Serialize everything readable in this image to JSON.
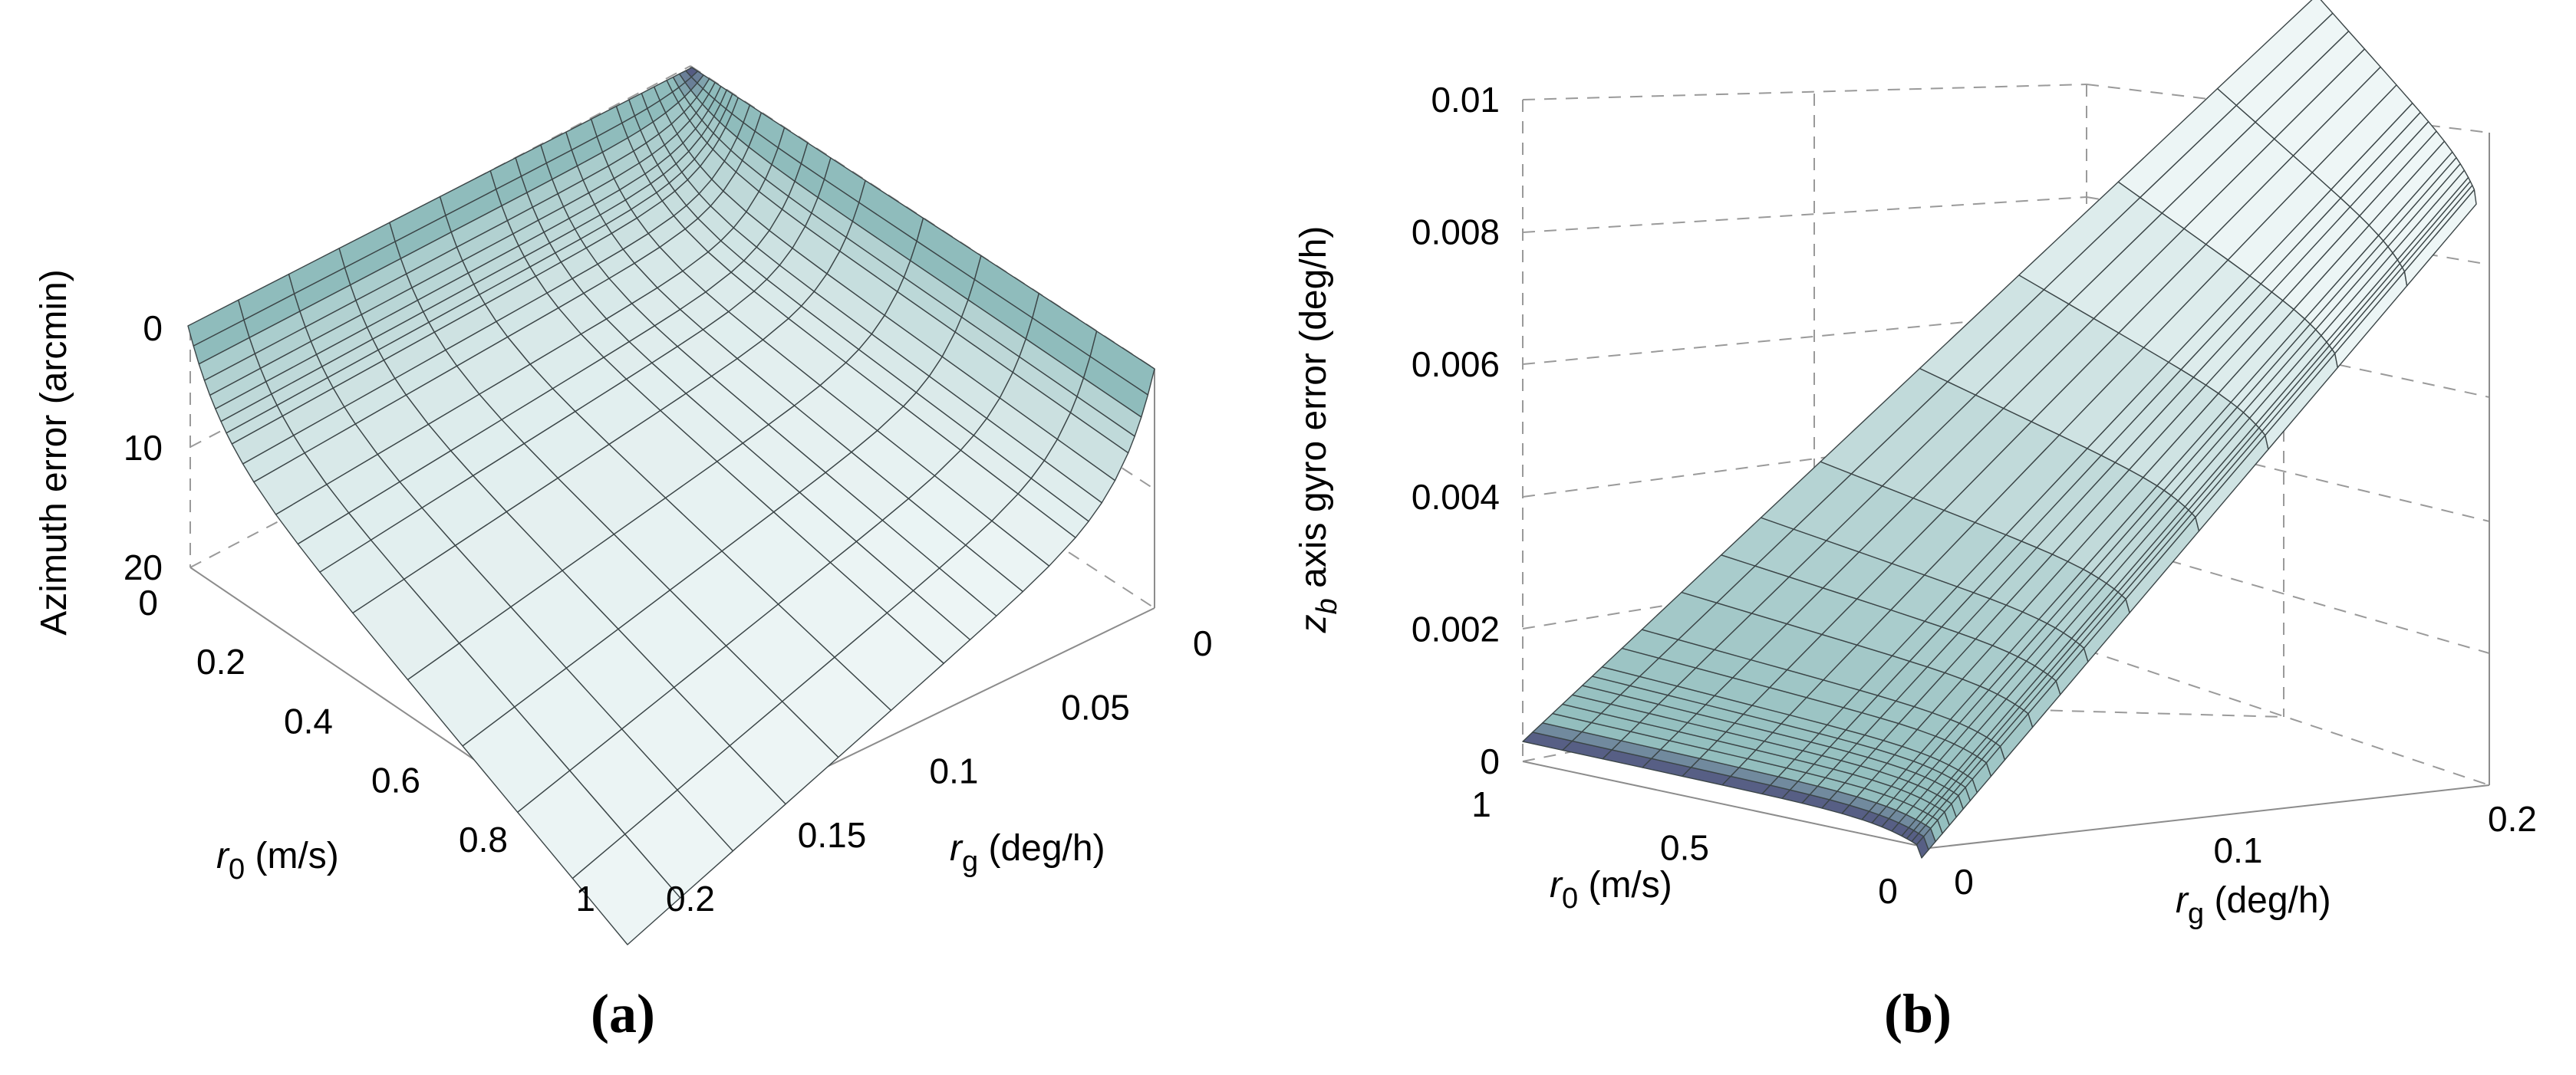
{
  "figure": {
    "colors": {
      "surface_high": "#eef6f6",
      "surface_low": "#8fbcbc",
      "surface_dark": "#4a4a78",
      "edge": "#3b4547",
      "grid": "#9a9a9a"
    }
  },
  "chart_data": [
    {
      "id": "a",
      "type": "surface",
      "panel_label": "(a)",
      "title": "",
      "xlabel": {
        "symbol": "r",
        "subscript": "g",
        "unit": " (deg/h)"
      },
      "ylabel": {
        "symbol": "r",
        "subscript": "0",
        "unit": " (m/s)"
      },
      "zlabel": "Azimuth error (arcmin)",
      "x_ticks": [
        "0",
        "0.05",
        "0.1",
        "0.15",
        "0.2"
      ],
      "y_ticks": [
        "0",
        "0.2",
        "0.4",
        "0.6",
        "0.8",
        "1"
      ],
      "z_ticks": [
        "0",
        "10",
        "20"
      ],
      "xlim": [
        0,
        0.2
      ],
      "ylim": [
        0,
        1
      ],
      "zlim": [
        0,
        20
      ],
      "z_direction": "reversed",
      "model": "azimuth error grows with rg and r0, saturating near 20 arcmin",
      "rg": [
        0,
        0.0025,
        0.005,
        0.0075,
        0.01,
        0.0125,
        0.015,
        0.0175,
        0.02,
        0.025,
        0.03,
        0.04,
        0.05,
        0.06,
        0.075,
        0.1,
        0.125,
        0.15,
        0.175,
        0.2
      ],
      "r0": [
        0,
        0.0125,
        0.025,
        0.0375,
        0.05,
        0.075,
        0.1,
        0.125,
        0.15,
        0.2,
        0.25,
        0.3,
        0.35,
        0.4,
        0.5,
        0.6,
        0.7,
        0.8,
        0.9,
        1.0
      ],
      "z_sample_values": [
        {
          "rg": 0,
          "r0": 0,
          "z": 0
        },
        {
          "rg": 0.2,
          "r0": 0,
          "z": 0
        },
        {
          "rg": 0,
          "r0": 1,
          "z": 0
        },
        {
          "rg": 0.2,
          "r0": 1,
          "z": 19.8
        }
      ]
    },
    {
      "id": "b",
      "type": "surface",
      "panel_label": "(b)",
      "title": "",
      "xlabel": {
        "symbol": "r",
        "subscript": "g",
        "unit": " (deg/h)"
      },
      "ylabel": {
        "symbol": "r",
        "subscript": "0",
        "unit": " (m/s)"
      },
      "zlabel": {
        "symbol": "z",
        "subscript": "b",
        "rest": " axis gyro error (deg/h)"
      },
      "x_ticks": [
        "0",
        "0.1",
        "0.2"
      ],
      "y_ticks": [
        "0",
        "0.5",
        "1"
      ],
      "z_ticks": [
        "0",
        "0.002",
        "0.004",
        "0.006",
        "0.008",
        "0.01"
      ],
      "xlim": [
        0,
        0.2
      ],
      "ylim": [
        0,
        1
      ],
      "zlim": [
        0,
        0.01
      ],
      "model": "z_b axis gyro error proportional to rg (0.045*rg), nearly independent of r0",
      "rg": [
        0,
        0.0025,
        0.005,
        0.0075,
        0.01,
        0.0125,
        0.015,
        0.0175,
        0.02,
        0.025,
        0.03,
        0.04,
        0.05,
        0.06,
        0.075,
        0.1,
        0.125,
        0.15,
        0.175,
        0.2
      ],
      "r0": [
        0,
        0.0125,
        0.025,
        0.0375,
        0.05,
        0.075,
        0.1,
        0.125,
        0.15,
        0.2,
        0.25,
        0.3,
        0.35,
        0.4,
        0.5,
        0.6,
        0.7,
        0.8,
        0.9,
        1.0
      ],
      "z_sample_values": [
        {
          "rg": 0,
          "r0": 0,
          "z": 0
        },
        {
          "rg": 0.2,
          "r0": 0,
          "z": 0.009
        },
        {
          "rg": 0.2,
          "r0": 1,
          "z": 0.0091
        },
        {
          "rg": 0,
          "r0": 1,
          "z": 0.0003
        }
      ]
    }
  ]
}
